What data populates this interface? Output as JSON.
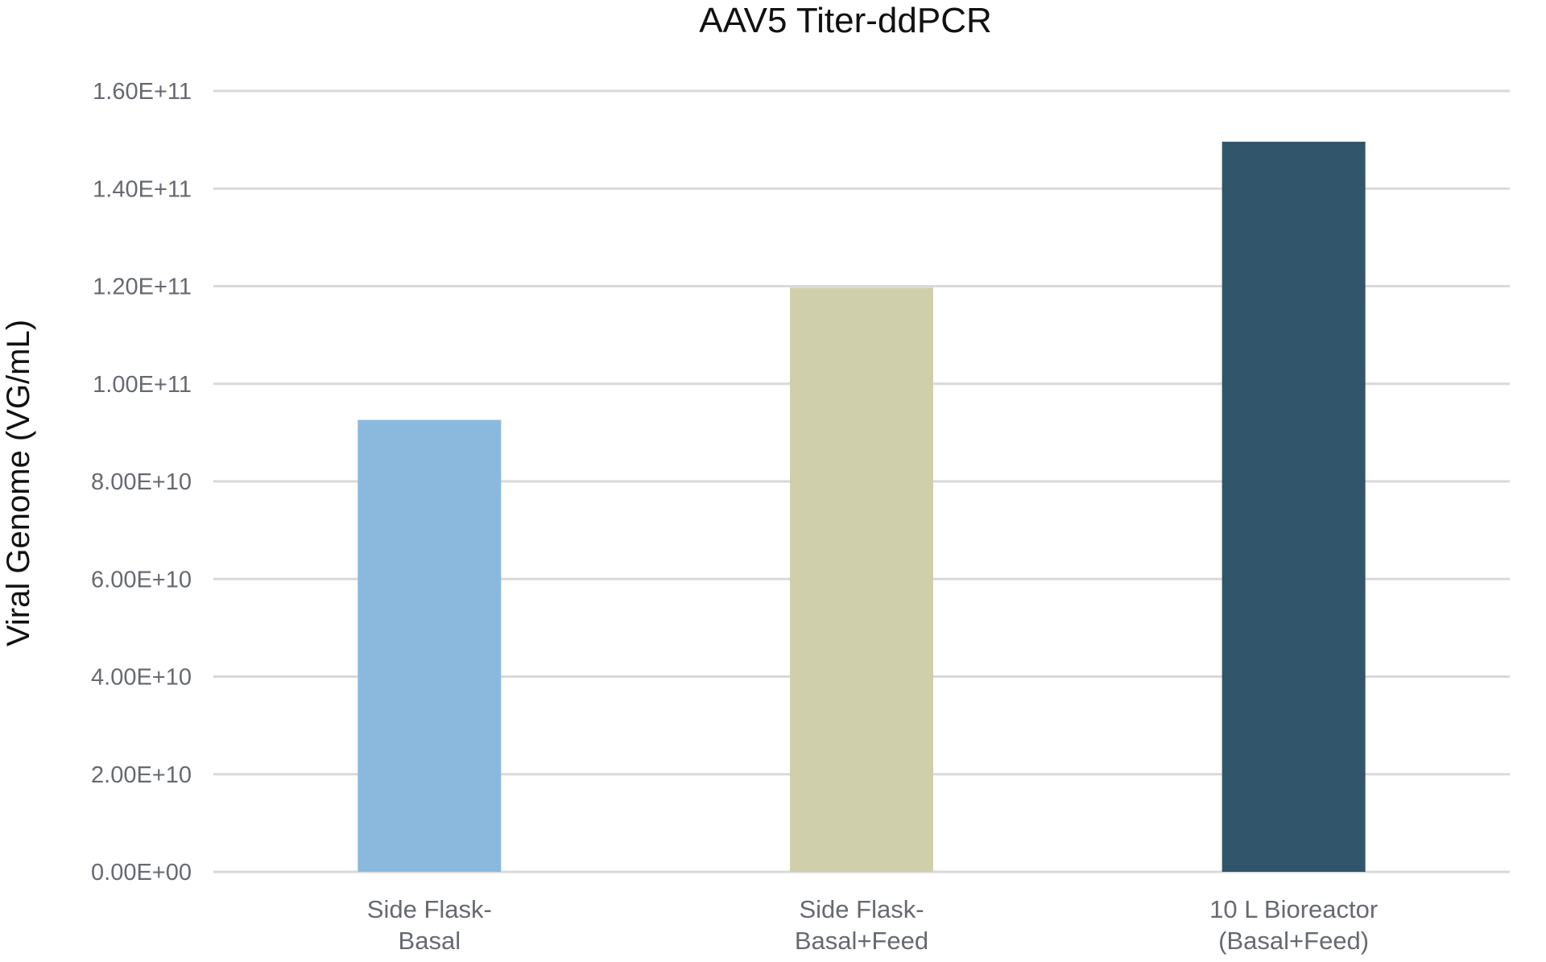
{
  "chart_data": {
    "type": "bar",
    "title": "AAV5 Titer-ddPCR",
    "xlabel": "",
    "ylabel": "Viral Genome (VG/mL)",
    "categories": [
      [
        "Side Flask-",
        "Basal"
      ],
      [
        "Side Flask-",
        "Basal+Feed"
      ],
      [
        "10 L Bioreactor",
        "(Basal+Feed)"
      ]
    ],
    "values": [
      92600000000,
      119700000000,
      149600000000
    ],
    "colors": [
      "#8ab9dd",
      "#cfd0ab",
      "#31556b"
    ],
    "ylim": [
      0,
      160000000000
    ],
    "yticks": [
      0,
      20000000000,
      40000000000,
      60000000000,
      80000000000,
      100000000000,
      120000000000,
      140000000000,
      160000000000
    ],
    "ytick_labels": [
      "0.00E+00",
      "2.00E+10",
      "4.00E+10",
      "6.00E+10",
      "8.00E+10",
      "1.00E+11",
      "1.20E+11",
      "1.40E+11",
      "1.60E+11"
    ],
    "grid": true,
    "legend": "none"
  }
}
